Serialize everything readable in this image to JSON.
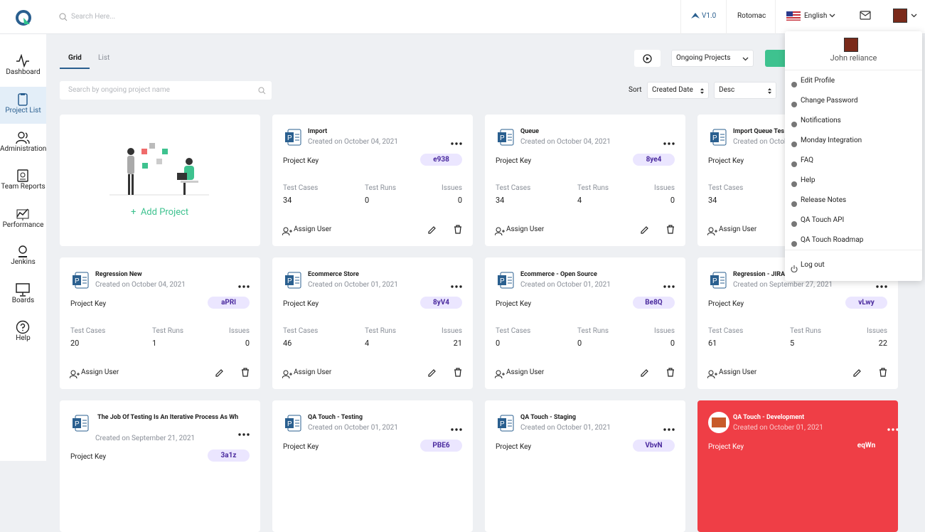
{
  "header": {
    "search_placeholder": "Search Here...",
    "version": "V1.0",
    "workspace": "Rotomac",
    "language": "English"
  },
  "sidebar": [
    "Dashboard",
    "Project List",
    "Administration",
    "Team Reports",
    "Performance",
    "Jenkins",
    "Boards",
    "Help"
  ],
  "tabs": [
    "Grid",
    "List"
  ],
  "toolbar": {
    "project_filter": "Ongoing Projects",
    "search_placeholder": "Search by ongoing project name",
    "sort_label": "Sort",
    "sort_field": "Created Date",
    "sort_order": "Desc"
  },
  "add_project": "Add Project",
  "card_labels": {
    "project_key": "Project Key",
    "test_cases": "Test Cases",
    "test_runs": "Test Runs",
    "issues": "Issues",
    "assign_user": "Assign User"
  },
  "projects": [
    {
      "name": "Import",
      "created": "Created on October 04, 2021",
      "key": "e938",
      "test_cases": 34,
      "test_runs": 0,
      "issues": 0
    },
    {
      "name": "Queue",
      "created": "Created on October 04, 2021",
      "key": "8ye4",
      "test_cases": 34,
      "test_runs": 4,
      "issues": 0
    },
    {
      "name": "Import Queue Tes",
      "created": "Created on Octob",
      "test_cases": 34
    },
    {
      "name": "Regression New",
      "created": "Created on October 04, 2021",
      "key": "aPRl",
      "test_cases": 20,
      "test_runs": 1,
      "issues": 0
    },
    {
      "name": "Ecommerce Store",
      "created": "Created on October 01, 2021",
      "key": "8yV4",
      "test_cases": 46,
      "test_runs": 4,
      "issues": 21
    },
    {
      "name": "Ecommerce - Open Source",
      "created": "Created on October 01, 2021",
      "key": "Be8Q",
      "test_cases": 0,
      "test_runs": 0,
      "issues": 0
    },
    {
      "name": "Regression - JIRA",
      "created": "Created on September 27, 2021",
      "key": "vLwy",
      "test_cases": 61,
      "test_runs": 5,
      "issues": 22
    },
    {
      "name": "The Job Of Testing Is An Iterative Process As Wh",
      "created": "Created on September 21, 2021",
      "key": "3a1z"
    },
    {
      "name": "QA Touch - Testing",
      "created": "Created on October 01, 2021",
      "key": "PBE6"
    },
    {
      "name": "QA Touch - Staging",
      "created": "Created on October 01, 2021",
      "key": "VbvN"
    },
    {
      "name": "QA Touch - Development",
      "created": "Created on October 01, 2021",
      "key": "eqWn",
      "color": "#ef3e46"
    }
  ],
  "user_menu": {
    "name": "John reliance",
    "items": [
      "Edit Profile",
      "Change Password",
      "Notifications",
      "Monday Integration",
      "FAQ",
      "Help",
      "Release Notes",
      "QA Touch API",
      "QA Touch Roadmap"
    ],
    "logout": "Log out"
  }
}
